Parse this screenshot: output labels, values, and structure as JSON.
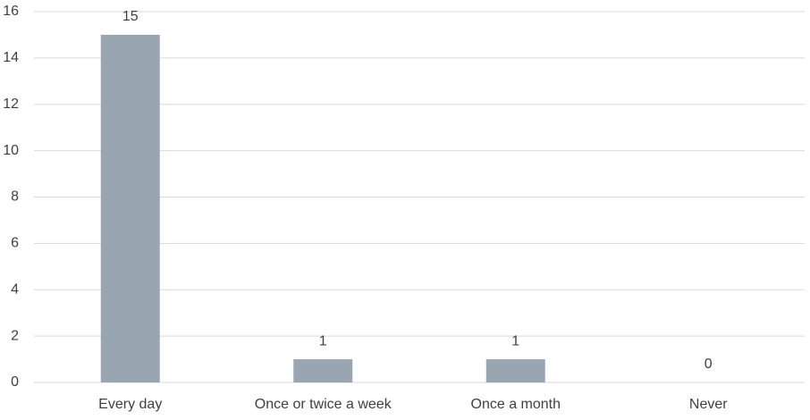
{
  "chart_data": {
    "type": "bar",
    "categories": [
      "Every day",
      "Once or twice a week",
      "Once a month",
      "Never"
    ],
    "values": [
      15,
      1,
      1,
      0
    ],
    "color": "#9aa5b2",
    "ylim": [
      0,
      16
    ],
    "yticks": [
      0,
      2,
      4,
      6,
      8,
      10,
      12,
      14,
      16
    ],
    "grid": true
  }
}
